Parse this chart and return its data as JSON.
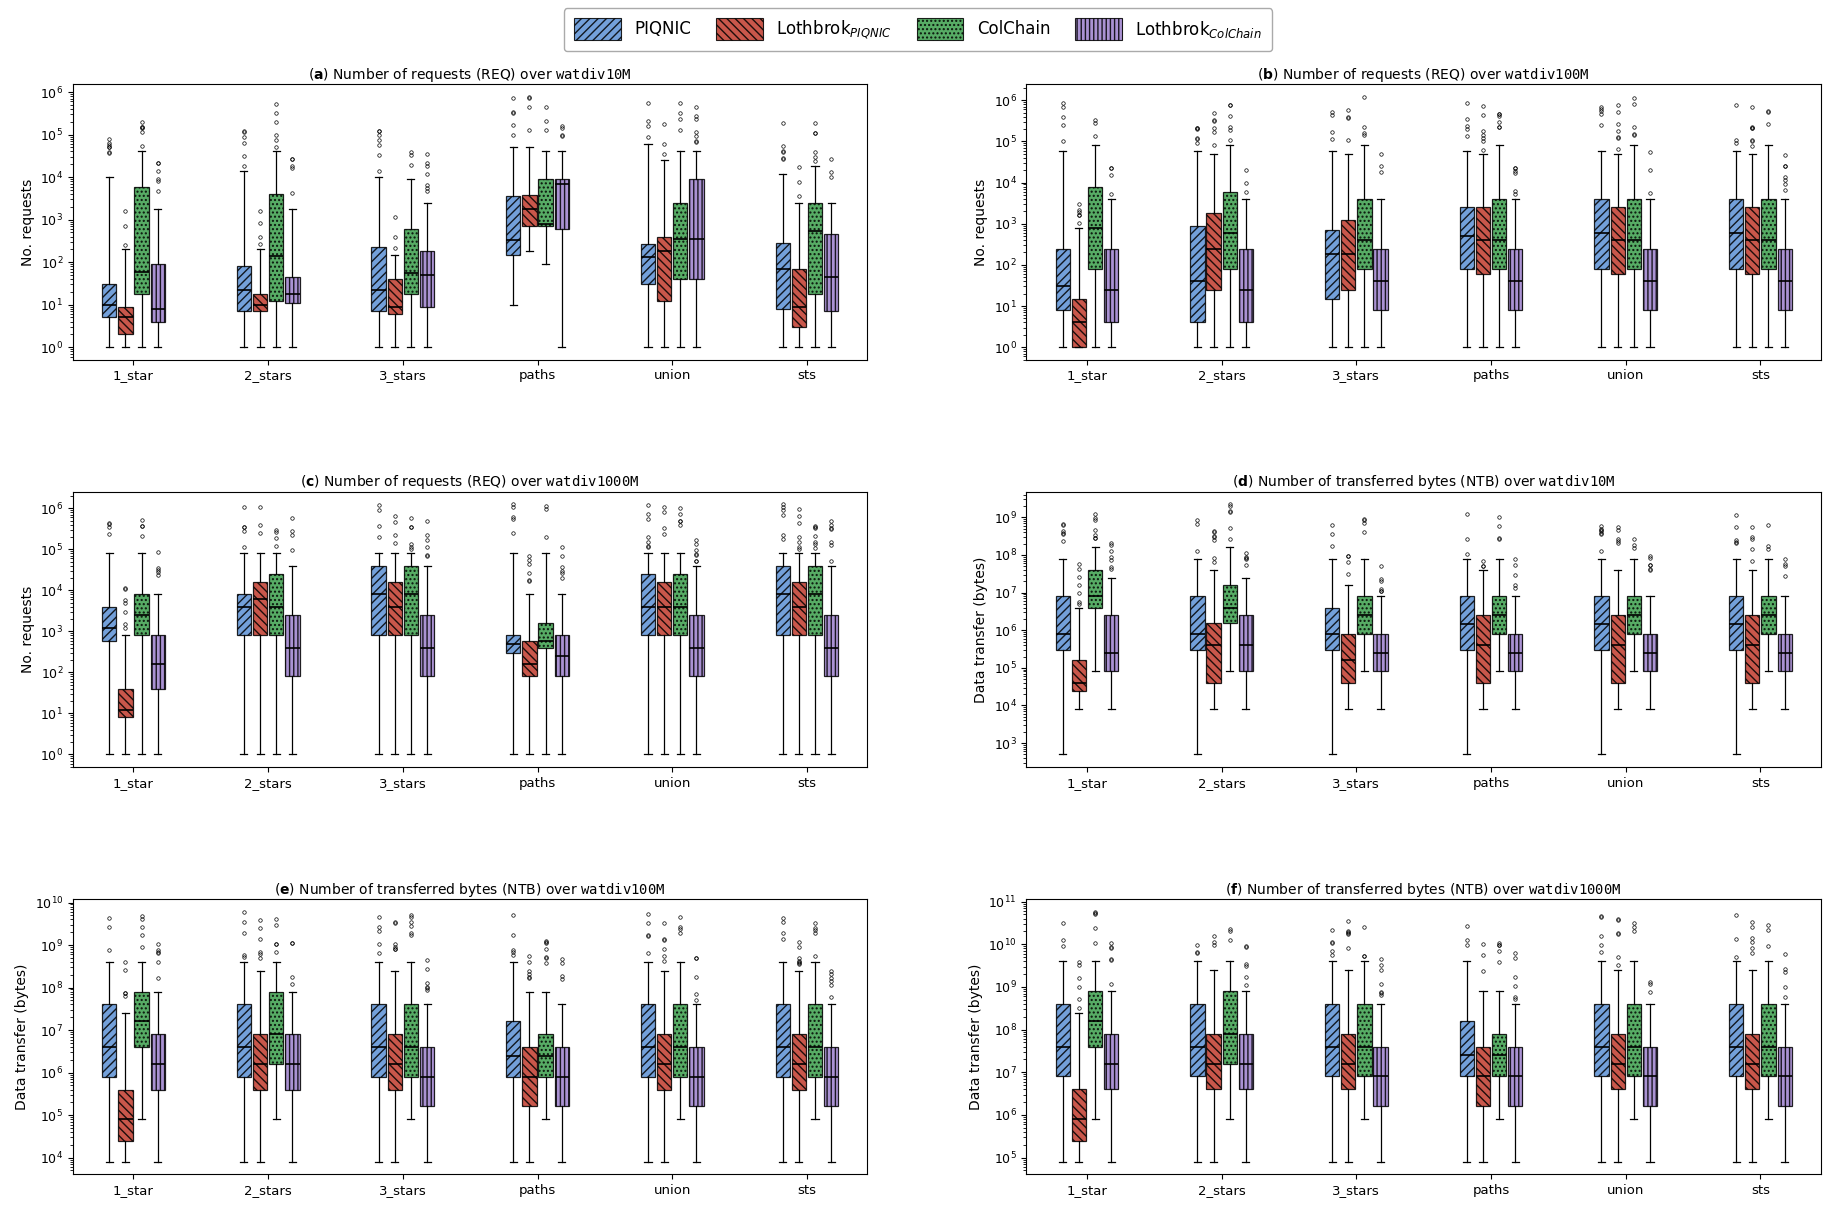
{
  "categories": [
    "1_star",
    "2_stars",
    "3_stars",
    "paths",
    "union",
    "sts"
  ],
  "systems": [
    "PIQNIC",
    "Lothbrok_PIQNIC",
    "ColChain",
    "Lothbrok_ColChain"
  ],
  "colors": [
    "#5B8FD4",
    "#C0392B",
    "#3A9E4A",
    "#9B7FCC"
  ],
  "hatches": [
    "////",
    "\\\\\\\\",
    "....",
    "||||"
  ],
  "ylabels_req": "No. requests",
  "ylabels_ntb": "Data transfer (bytes)",
  "subplot_captions": [
    "(a) Number of requests (REQ) over watdiv10M",
    "(b) Number of requests (REQ) over watdiv100M",
    "(c) Number of requests (REQ) over watdiv1000M",
    "(d) Number of transferred bytes (NTB) over watdiv10M",
    "(e) Number of transferred bytes (NTB) over watdiv100M",
    "(f) Number of transferred bytes (NTB) over watdiv1000M"
  ],
  "subplot_datasets": [
    "watdiv10M",
    "watdiv100M",
    "watdiv1000M",
    "watdiv10M",
    "watdiv100M",
    "watdiv1000M"
  ],
  "subplot_data": {
    "a": {
      "PIQNIC": {
        "1_star": [
          1,
          5,
          10,
          30,
          10000
        ],
        "2_stars": [
          1,
          7,
          22,
          80,
          14000
        ],
        "3_stars": [
          1,
          7,
          22,
          230,
          10000
        ],
        "paths": [
          10,
          150,
          330,
          3500,
          50000
        ],
        "union": [
          1,
          30,
          130,
          270,
          60000
        ],
        "sts": [
          1,
          8,
          70,
          280,
          12000
        ]
      },
      "Lothbrok_PIQNIC": {
        "1_star": [
          1,
          2,
          5,
          9,
          200
        ],
        "2_stars": [
          1,
          7,
          10,
          18,
          200
        ],
        "3_stars": [
          1,
          6,
          9,
          40,
          150
        ],
        "paths": [
          180,
          700,
          1800,
          3800,
          50000
        ],
        "union": [
          1,
          12,
          180,
          380,
          25000
        ],
        "sts": [
          1,
          3,
          9,
          70,
          2500
        ]
      },
      "ColChain": {
        "1_star": [
          1,
          18,
          60,
          6000,
          40000
        ],
        "2_stars": [
          1,
          12,
          140,
          4000,
          40000
        ],
        "3_stars": [
          1,
          18,
          55,
          600,
          9000
        ],
        "paths": [
          90,
          700,
          800,
          9000,
          40000
        ],
        "union": [
          1,
          40,
          350,
          2500,
          40000
        ],
        "sts": [
          1,
          18,
          550,
          2500,
          18000
        ]
      },
      "Lothbrok_ColChain": {
        "1_star": [
          1,
          4,
          8,
          90,
          1800
        ],
        "2_stars": [
          1,
          11,
          18,
          45,
          1800
        ],
        "3_stars": [
          1,
          9,
          50,
          180,
          2500
        ],
        "paths": [
          1,
          600,
          7000,
          9000,
          40000
        ],
        "union": [
          1,
          40,
          350,
          9000,
          40000
        ],
        "sts": [
          1,
          7,
          45,
          450,
          2500
        ]
      }
    },
    "b": {
      "PIQNIC": {
        "1_star": [
          1,
          8,
          30,
          250,
          60000
        ],
        "2_stars": [
          1,
          4,
          40,
          900,
          60000
        ],
        "3_stars": [
          1,
          15,
          180,
          700,
          60000
        ],
        "paths": [
          1,
          80,
          500,
          2500,
          60000
        ],
        "union": [
          1,
          80,
          600,
          4000,
          60000
        ],
        "sts": [
          1,
          80,
          600,
          4000,
          60000
        ]
      },
      "Lothbrok_PIQNIC": {
        "1_star": [
          1,
          1,
          4,
          15,
          800
        ],
        "2_stars": [
          1,
          25,
          250,
          1800,
          50000
        ],
        "3_stars": [
          1,
          25,
          180,
          1200,
          50000
        ],
        "paths": [
          1,
          60,
          400,
          2500,
          50000
        ],
        "union": [
          1,
          60,
          400,
          2500,
          50000
        ],
        "sts": [
          1,
          60,
          400,
          2500,
          50000
        ]
      },
      "ColChain": {
        "1_star": [
          1,
          80,
          800,
          8000,
          80000
        ],
        "2_stars": [
          1,
          80,
          600,
          6000,
          80000
        ],
        "3_stars": [
          1,
          80,
          400,
          4000,
          80000
        ],
        "paths": [
          1,
          80,
          400,
          4000,
          80000
        ],
        "union": [
          1,
          80,
          400,
          4000,
          80000
        ],
        "sts": [
          1,
          80,
          400,
          4000,
          80000
        ]
      },
      "Lothbrok_ColChain": {
        "1_star": [
          1,
          4,
          25,
          250,
          4000
        ],
        "2_stars": [
          1,
          4,
          25,
          250,
          4000
        ],
        "3_stars": [
          1,
          8,
          40,
          250,
          4000
        ],
        "paths": [
          1,
          8,
          40,
          250,
          4000
        ],
        "union": [
          1,
          8,
          40,
          250,
          4000
        ],
        "sts": [
          1,
          8,
          40,
          250,
          4000
        ]
      }
    },
    "c": {
      "PIQNIC": {
        "1_star": [
          1,
          600,
          1200,
          4000,
          80000
        ],
        "2_stars": [
          1,
          800,
          4000,
          8000,
          80000
        ],
        "3_stars": [
          1,
          800,
          8000,
          40000,
          80000
        ],
        "paths": [
          1,
          300,
          500,
          800,
          80000
        ],
        "union": [
          1,
          800,
          4000,
          25000,
          80000
        ],
        "sts": [
          1,
          800,
          8000,
          40000,
          80000
        ]
      },
      "Lothbrok_PIQNIC": {
        "1_star": [
          1,
          8,
          12,
          40,
          800
        ],
        "2_stars": [
          1,
          800,
          6000,
          16000,
          80000
        ],
        "3_stars": [
          1,
          800,
          4000,
          16000,
          80000
        ],
        "paths": [
          1,
          80,
          160,
          600,
          8000
        ],
        "union": [
          1,
          800,
          4000,
          16000,
          80000
        ],
        "sts": [
          1,
          800,
          4000,
          16000,
          80000
        ]
      },
      "ColChain": {
        "1_star": [
          1,
          800,
          2500,
          8000,
          80000
        ],
        "2_stars": [
          1,
          800,
          4000,
          25000,
          80000
        ],
        "3_stars": [
          1,
          800,
          8000,
          40000,
          80000
        ],
        "paths": [
          1,
          400,
          600,
          1600,
          80000
        ],
        "union": [
          1,
          800,
          4000,
          25000,
          80000
        ],
        "sts": [
          1,
          800,
          8000,
          40000,
          80000
        ]
      },
      "Lothbrok_ColChain": {
        "1_star": [
          1,
          40,
          160,
          800,
          8000
        ],
        "2_stars": [
          1,
          80,
          400,
          2500,
          40000
        ],
        "3_stars": [
          1,
          80,
          400,
          2500,
          40000
        ],
        "paths": [
          1,
          80,
          250,
          800,
          8000
        ],
        "union": [
          1,
          80,
          400,
          2500,
          40000
        ],
        "sts": [
          1,
          80,
          400,
          2500,
          40000
        ]
      }
    },
    "d": {
      "PIQNIC": {
        "1_star": [
          500,
          300000,
          800000,
          8000000,
          80000000
        ],
        "2_stars": [
          500,
          300000,
          800000,
          8000000,
          80000000
        ],
        "3_stars": [
          500,
          300000,
          800000,
          4000000,
          80000000
        ],
        "paths": [
          500,
          300000,
          1500000,
          8000000,
          80000000
        ],
        "union": [
          500,
          300000,
          1500000,
          8000000,
          80000000
        ],
        "sts": [
          500,
          300000,
          1500000,
          8000000,
          80000000
        ]
      },
      "Lothbrok_PIQNIC": {
        "1_star": [
          8000,
          25000,
          40000,
          160000,
          4000000
        ],
        "2_stars": [
          8000,
          40000,
          400000,
          1600000,
          40000000
        ],
        "3_stars": [
          8000,
          40000,
          160000,
          800000,
          16000000
        ],
        "paths": [
          8000,
          40000,
          400000,
          2500000,
          40000000
        ],
        "union": [
          8000,
          40000,
          400000,
          2500000,
          40000000
        ],
        "sts": [
          8000,
          40000,
          400000,
          2500000,
          40000000
        ]
      },
      "ColChain": {
        "1_star": [
          80000,
          4000000,
          8000000,
          40000000,
          160000000
        ],
        "2_stars": [
          80000,
          1600000,
          4000000,
          16000000,
          160000000
        ],
        "3_stars": [
          80000,
          800000,
          2500000,
          8000000,
          80000000
        ],
        "paths": [
          80000,
          800000,
          2500000,
          8000000,
          80000000
        ],
        "union": [
          80000,
          800000,
          2500000,
          8000000,
          80000000
        ],
        "sts": [
          80000,
          800000,
          2500000,
          8000000,
          80000000
        ]
      },
      "Lothbrok_ColChain": {
        "1_star": [
          8000,
          80000,
          250000,
          2500000,
          25000000
        ],
        "2_stars": [
          8000,
          80000,
          400000,
          2500000,
          25000000
        ],
        "3_stars": [
          8000,
          80000,
          250000,
          800000,
          8000000
        ],
        "paths": [
          8000,
          80000,
          250000,
          800000,
          8000000
        ],
        "union": [
          8000,
          80000,
          250000,
          800000,
          8000000
        ],
        "sts": [
          8000,
          80000,
          250000,
          800000,
          8000000
        ]
      }
    },
    "e": {
      "PIQNIC": {
        "1_star": [
          8000,
          800000,
          4000000,
          40000000,
          400000000
        ],
        "2_stars": [
          8000,
          800000,
          4000000,
          40000000,
          400000000
        ],
        "3_stars": [
          8000,
          800000,
          4000000,
          40000000,
          400000000
        ],
        "paths": [
          8000,
          800000,
          2500000,
          16000000,
          400000000
        ],
        "union": [
          8000,
          800000,
          4000000,
          40000000,
          400000000
        ],
        "sts": [
          8000,
          800000,
          4000000,
          40000000,
          400000000
        ]
      },
      "Lothbrok_PIQNIC": {
        "1_star": [
          8000,
          25000,
          80000,
          400000,
          25000000
        ],
        "2_stars": [
          8000,
          400000,
          1600000,
          8000000,
          250000000
        ],
        "3_stars": [
          8000,
          400000,
          1600000,
          8000000,
          250000000
        ],
        "paths": [
          8000,
          160000,
          800000,
          4000000,
          80000000
        ],
        "union": [
          8000,
          400000,
          1600000,
          8000000,
          250000000
        ],
        "sts": [
          8000,
          400000,
          1600000,
          8000000,
          250000000
        ]
      },
      "ColChain": {
        "1_star": [
          80000,
          4000000,
          16000000,
          80000000,
          400000000
        ],
        "2_stars": [
          80000,
          1600000,
          8000000,
          80000000,
          400000000
        ],
        "3_stars": [
          80000,
          800000,
          4000000,
          40000000,
          400000000
        ],
        "paths": [
          80000,
          800000,
          2500000,
          8000000,
          80000000
        ],
        "union": [
          80000,
          800000,
          4000000,
          40000000,
          400000000
        ],
        "sts": [
          80000,
          800000,
          4000000,
          40000000,
          400000000
        ]
      },
      "Lothbrok_ColChain": {
        "1_star": [
          8000,
          400000,
          1600000,
          8000000,
          80000000
        ],
        "2_stars": [
          8000,
          400000,
          1600000,
          8000000,
          80000000
        ],
        "3_stars": [
          8000,
          160000,
          800000,
          4000000,
          40000000
        ],
        "paths": [
          8000,
          160000,
          800000,
          4000000,
          40000000
        ],
        "union": [
          8000,
          160000,
          800000,
          4000000,
          40000000
        ],
        "sts": [
          8000,
          160000,
          800000,
          4000000,
          40000000
        ]
      }
    },
    "f": {
      "PIQNIC": {
        "1_star": [
          80000,
          8000000,
          40000000,
          400000000,
          4000000000
        ],
        "2_stars": [
          80000,
          8000000,
          40000000,
          400000000,
          4000000000
        ],
        "3_stars": [
          80000,
          8000000,
          40000000,
          400000000,
          4000000000
        ],
        "paths": [
          80000,
          8000000,
          25000000,
          160000000,
          4000000000
        ],
        "union": [
          80000,
          8000000,
          40000000,
          400000000,
          4000000000
        ],
        "sts": [
          80000,
          8000000,
          40000000,
          400000000,
          4000000000
        ]
      },
      "Lothbrok_PIQNIC": {
        "1_star": [
          80000,
          250000,
          800000,
          4000000,
          250000000
        ],
        "2_stars": [
          80000,
          4000000,
          16000000,
          80000000,
          2500000000
        ],
        "3_stars": [
          80000,
          4000000,
          16000000,
          80000000,
          2500000000
        ],
        "paths": [
          80000,
          1600000,
          8000000,
          40000000,
          800000000
        ],
        "union": [
          80000,
          4000000,
          16000000,
          80000000,
          2500000000
        ],
        "sts": [
          80000,
          4000000,
          16000000,
          80000000,
          2500000000
        ]
      },
      "ColChain": {
        "1_star": [
          800000,
          40000000,
          160000000,
          800000000,
          4000000000
        ],
        "2_stars": [
          800000,
          16000000,
          80000000,
          800000000,
          4000000000
        ],
        "3_stars": [
          800000,
          8000000,
          40000000,
          400000000,
          4000000000
        ],
        "paths": [
          800000,
          8000000,
          25000000,
          80000000,
          800000000
        ],
        "union": [
          800000,
          8000000,
          40000000,
          400000000,
          4000000000
        ],
        "sts": [
          800000,
          8000000,
          40000000,
          400000000,
          4000000000
        ]
      },
      "Lothbrok_ColChain": {
        "1_star": [
          80000,
          4000000,
          16000000,
          80000000,
          800000000
        ],
        "2_stars": [
          80000,
          4000000,
          16000000,
          80000000,
          800000000
        ],
        "3_stars": [
          80000,
          1600000,
          8000000,
          40000000,
          400000000
        ],
        "paths": [
          80000,
          1600000,
          8000000,
          40000000,
          400000000
        ],
        "union": [
          80000,
          1600000,
          8000000,
          40000000,
          400000000
        ],
        "sts": [
          80000,
          1600000,
          8000000,
          40000000,
          400000000
        ]
      }
    }
  }
}
